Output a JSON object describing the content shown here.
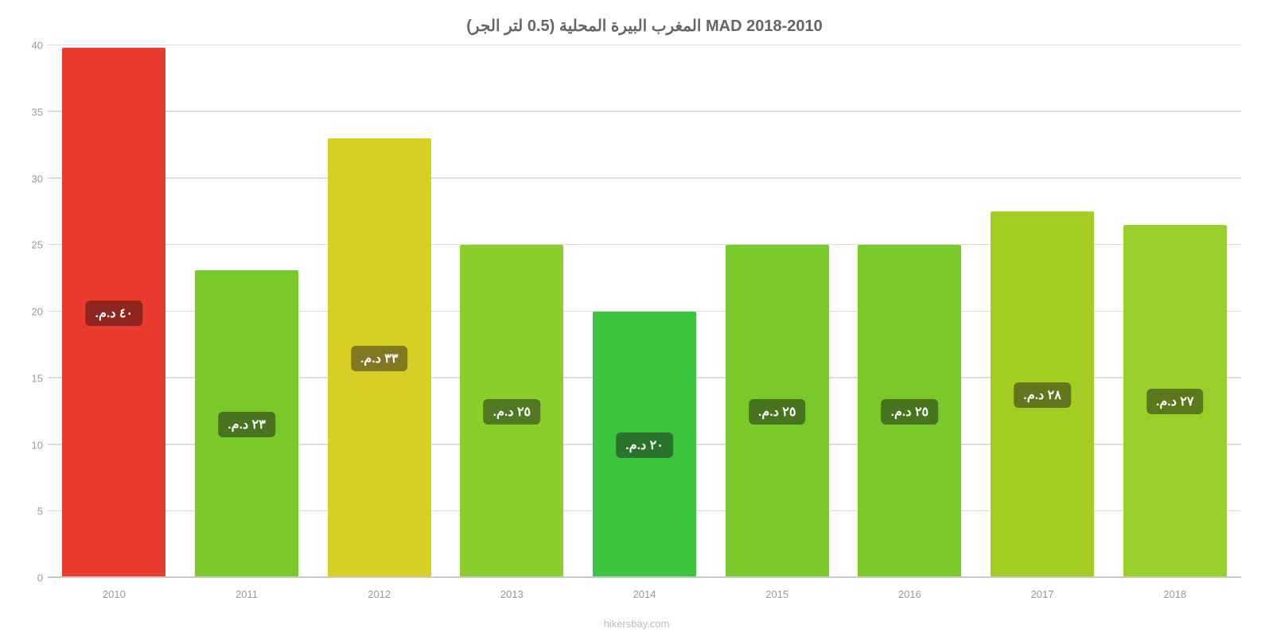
{
  "chart": {
    "type": "bar",
    "title": "المغرب البيرة المحلية (0.5 لتر الجر) MAD 2018-2010",
    "title_fontsize": 20,
    "title_color": "#666666",
    "background_color": "#ffffff",
    "grid_color": "#dddddd",
    "axis_label_color": "#999999",
    "axis_fontsize": 13,
    "credit": "hikersbay.com",
    "credit_color": "#bbbbbb",
    "ylim": [
      0,
      40
    ],
    "yticks": [
      0,
      5,
      10,
      15,
      20,
      25,
      30,
      35,
      40
    ],
    "bar_width_pct": 78,
    "label_fontsize": 16,
    "label_text_color": "#ffffff",
    "categories": [
      "2010",
      "2011",
      "2012",
      "2013",
      "2014",
      "2015",
      "2016",
      "2017",
      "2018"
    ],
    "values": [
      39.8,
      23.1,
      33.0,
      25.0,
      20.0,
      25.0,
      25.0,
      27.5,
      26.5
    ],
    "bar_colors": [
      "#eb3b2e",
      "#78c929",
      "#d7cf24",
      "#8ace29",
      "#3dc43e",
      "#78c929",
      "#78c929",
      "#a4cd24",
      "#9ace29"
    ],
    "value_labels": [
      "٤٠ د.م.",
      "٢٣ د.م.",
      "٣٣ د.م.",
      "٢٥ د.م.",
      "٢٠ د.م.",
      "٢٥ د.م.",
      "٢٥ د.م.",
      "٢٨ د.م.",
      "٢٧ د.م."
    ],
    "label_bg_colors": [
      "#902520",
      "#48741f",
      "#817922",
      "#537822",
      "#2b732d",
      "#48741f",
      "#48741f",
      "#62771d",
      "#5c781f"
    ]
  }
}
